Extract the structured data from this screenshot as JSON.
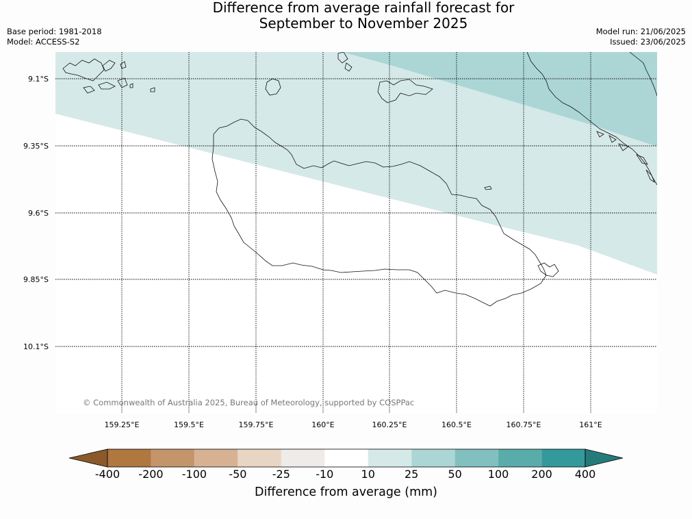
{
  "title": {
    "line1": "Difference from average rainfall forecast for",
    "line2": "September to November 2025"
  },
  "meta": {
    "base_period": "Base period: 1981-2018",
    "model": "Model: ACCESS-S2",
    "model_run": "Model run: 21/06/2025",
    "issued": "Issued: 23/06/2025"
  },
  "map": {
    "lat_ticks": [
      "9.1°S",
      "9.35°S",
      "9.6°S",
      "9.85°S",
      "10.1°S"
    ],
    "lon_ticks": [
      "159.25°E",
      "159.5°E",
      "159.75°E",
      "160°E",
      "160.25°E",
      "160.5°E",
      "160.75°E",
      "161°E"
    ],
    "copyright": "© Commonwealth of Australia 2025, Bureau of Meteorology, supported by COSPPac",
    "region_colors": {
      "light_wet": "#d5e9e8",
      "mid_wet": "#acd6d6",
      "neutral": "#ffffff"
    }
  },
  "colorbar": {
    "title": "Difference from average (mm)",
    "tick_labels": [
      "-400",
      "-200",
      "-100",
      "-50",
      "-25",
      "-10",
      "10",
      "25",
      "50",
      "100",
      "200",
      "400"
    ],
    "colors": [
      "#8a5a2a",
      "#b0773f",
      "#c4946a",
      "#d6b293",
      "#e8d5c3",
      "#efebe8",
      "#ffffff",
      "#d5e9e8",
      "#acd6d6",
      "#82bfbf",
      "#5aacaa",
      "#34999a",
      "#267b7a"
    ]
  }
}
